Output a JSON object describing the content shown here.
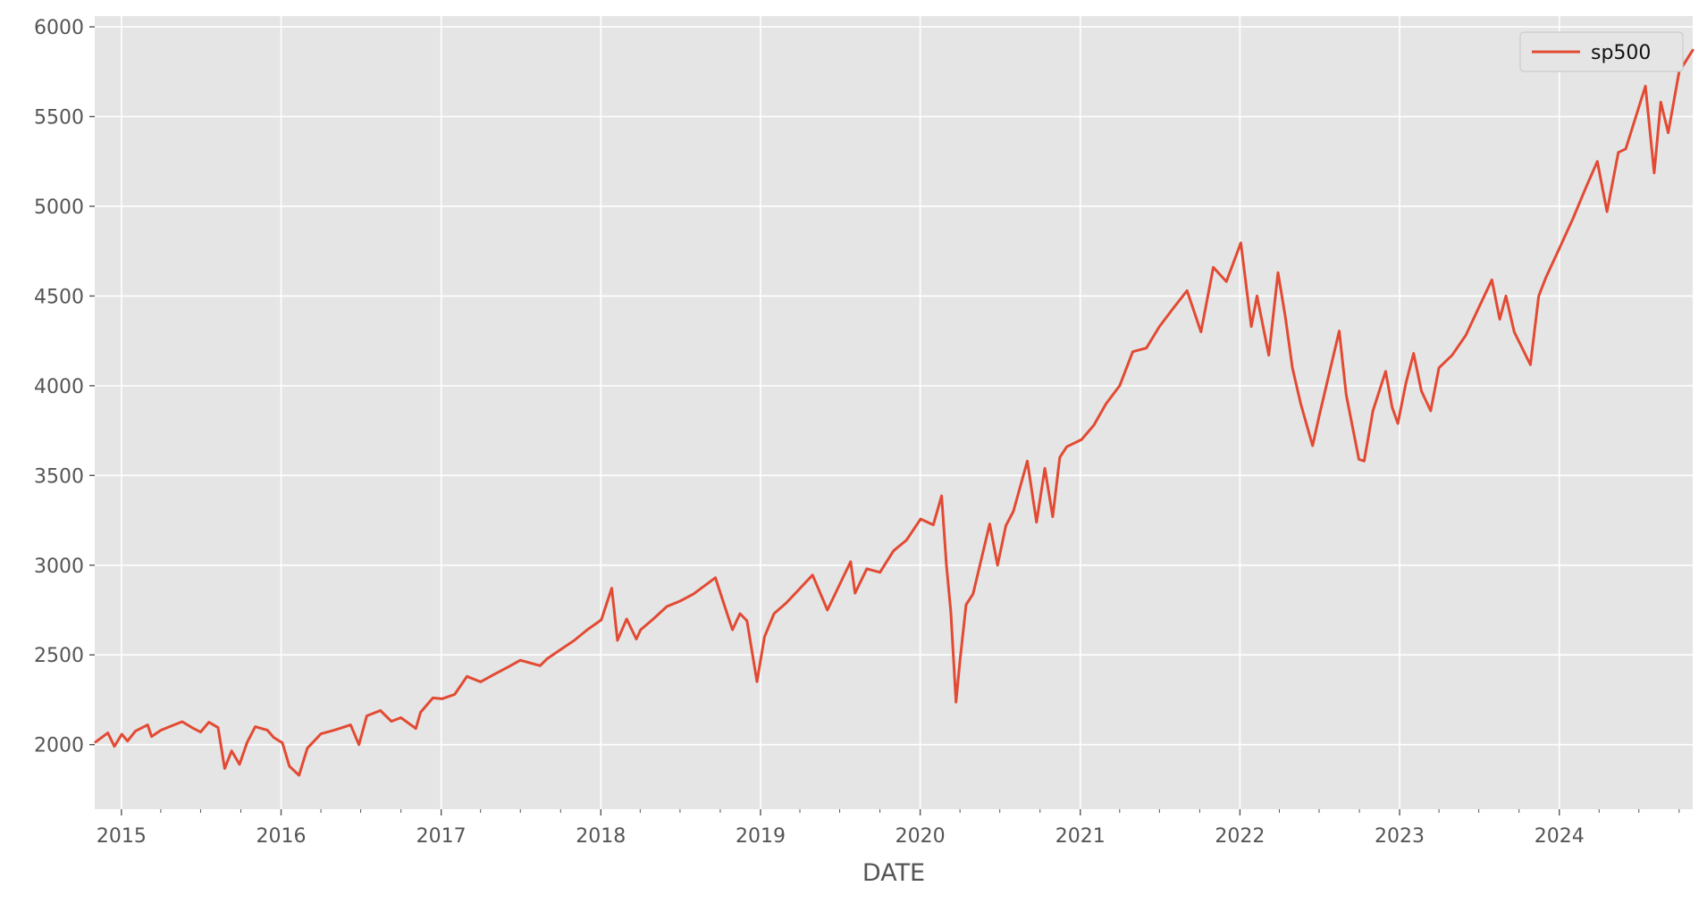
{
  "chart_data": {
    "type": "line",
    "title": "",
    "xlabel": "DATE",
    "ylabel": "",
    "xlim": [
      "2014-11-01",
      "2024-11-01"
    ],
    "ylim": [
      1640,
      6060
    ],
    "x_ticks": [
      "2015",
      "2016",
      "2017",
      "2018",
      "2019",
      "2020",
      "2021",
      "2022",
      "2023",
      "2024"
    ],
    "y_ticks": [
      2000,
      2500,
      3000,
      3500,
      4000,
      4500,
      5000,
      5500,
      6000
    ],
    "grid": true,
    "legend": {
      "placement": "top-right",
      "entries": [
        "sp500"
      ]
    },
    "colors": {
      "line": "#e24a33",
      "plot_bg": "#e5e5e5",
      "grid": "#ffffff",
      "tick_text": "#555555"
    },
    "series": [
      {
        "name": "sp500",
        "x": [
          "2014-11-03",
          "2014-12-01",
          "2014-12-16",
          "2015-01-02",
          "2015-01-15",
          "2015-02-02",
          "2015-03-02",
          "2015-03-11",
          "2015-04-01",
          "2015-05-01",
          "2015-05-20",
          "2015-06-15",
          "2015-07-01",
          "2015-07-20",
          "2015-08-10",
          "2015-08-25",
          "2015-09-10",
          "2015-09-28",
          "2015-10-15",
          "2015-11-03",
          "2015-12-01",
          "2015-12-15",
          "2016-01-04",
          "2016-01-20",
          "2016-02-11",
          "2016-03-01",
          "2016-04-01",
          "2016-05-01",
          "2016-06-08",
          "2016-06-27",
          "2016-07-15",
          "2016-08-15",
          "2016-09-09",
          "2016-10-01",
          "2016-11-04",
          "2016-11-15",
          "2016-12-13",
          "2017-01-03",
          "2017-02-01",
          "2017-03-01",
          "2017-04-01",
          "2017-05-01",
          "2017-06-01",
          "2017-07-01",
          "2017-08-15",
          "2017-09-01",
          "2017-10-01",
          "2017-11-01",
          "2017-12-01",
          "2018-01-02",
          "2018-01-26",
          "2018-02-08",
          "2018-03-01",
          "2018-03-23",
          "2018-04-02",
          "2018-05-01",
          "2018-06-01",
          "2018-07-01",
          "2018-08-01",
          "2018-09-20",
          "2018-10-10",
          "2018-10-29",
          "2018-11-15",
          "2018-12-01",
          "2018-12-24",
          "2019-01-10",
          "2019-02-01",
          "2019-03-01",
          "2019-04-01",
          "2019-04-30",
          "2019-06-03",
          "2019-07-26",
          "2019-08-05",
          "2019-09-01",
          "2019-10-01",
          "2019-11-01",
          "2019-12-01",
          "2020-01-02",
          "2020-01-31",
          "2020-02-19",
          "2020-03-01",
          "2020-03-11",
          "2020-03-23",
          "2020-04-01",
          "2020-04-15",
          "2020-05-01",
          "2020-06-08",
          "2020-06-26",
          "2020-07-15",
          "2020-08-01",
          "2020-09-02",
          "2020-09-23",
          "2020-10-12",
          "2020-10-30",
          "2020-11-15",
          "2020-12-01",
          "2021-01-04",
          "2021-02-01",
          "2021-03-01",
          "2021-04-01",
          "2021-05-01",
          "2021-06-01",
          "2021-07-01",
          "2021-08-01",
          "2021-09-02",
          "2021-10-04",
          "2021-11-01",
          "2021-12-01",
          "2022-01-03",
          "2022-01-27",
          "2022-02-09",
          "2022-03-08",
          "2022-03-29",
          "2022-04-15",
          "2022-05-01",
          "2022-05-20",
          "2022-06-16",
          "2022-07-01",
          "2022-08-16",
          "2022-09-01",
          "2022-09-30",
          "2022-10-12",
          "2022-11-01",
          "2022-11-30",
          "2022-12-15",
          "2022-12-28",
          "2023-01-15",
          "2023-02-02",
          "2023-02-20",
          "2023-03-13",
          "2023-04-01",
          "2023-05-01",
          "2023-06-01",
          "2023-07-31",
          "2023-08-18",
          "2023-09-01",
          "2023-09-20",
          "2023-10-27",
          "2023-11-15",
          "2023-12-01",
          "2024-01-02",
          "2024-02-01",
          "2024-03-01",
          "2024-03-28",
          "2024-04-19",
          "2024-05-15",
          "2024-06-01",
          "2024-07-16",
          "2024-08-05",
          "2024-08-20",
          "2024-09-06",
          "2024-10-01",
          "2024-11-01"
        ],
        "values": [
          2015,
          2065,
          1990,
          2058,
          2020,
          2075,
          2110,
          2045,
          2080,
          2110,
          2128,
          2090,
          2070,
          2125,
          2095,
          1867,
          1965,
          1890,
          2010,
          2100,
          2080,
          2040,
          2010,
          1880,
          1829,
          1980,
          2060,
          2080,
          2110,
          2000,
          2160,
          2190,
          2130,
          2150,
          2090,
          2180,
          2260,
          2255,
          2280,
          2380,
          2350,
          2390,
          2430,
          2470,
          2440,
          2480,
          2530,
          2580,
          2640,
          2695,
          2872,
          2581,
          2700,
          2588,
          2640,
          2700,
          2770,
          2800,
          2840,
          2930,
          2780,
          2640,
          2730,
          2690,
          2351,
          2600,
          2730,
          2790,
          2870,
          2945,
          2750,
          3020,
          2844,
          2980,
          2960,
          3080,
          3140,
          3257,
          3225,
          3386,
          3000,
          2740,
          2237,
          2470,
          2780,
          2840,
          3230,
          3000,
          3220,
          3300,
          3580,
          3240,
          3540,
          3270,
          3600,
          3660,
          3700,
          3780,
          3900,
          4000,
          4190,
          4210,
          4330,
          4430,
          4530,
          4300,
          4660,
          4580,
          4796,
          4330,
          4500,
          4170,
          4630,
          4380,
          4100,
          3900,
          3666,
          3830,
          4305,
          3950,
          3590,
          3580,
          3860,
          4080,
          3880,
          3790,
          4010,
          4180,
          3970,
          3860,
          4100,
          4170,
          4280,
          4590,
          4370,
          4500,
          4300,
          4117,
          4500,
          4600,
          4770,
          4930,
          5100,
          5250,
          4970,
          5300,
          5320,
          5670,
          5186,
          5580,
          5410,
          5750,
          5870
        ]
      }
    ]
  }
}
